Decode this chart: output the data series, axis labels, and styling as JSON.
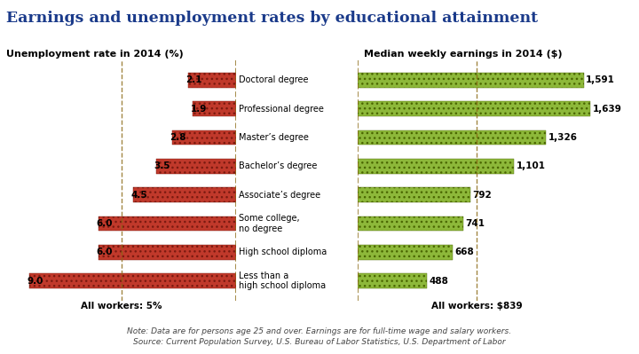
{
  "title": "Earnings and unemployment rates by educational attainment",
  "title_color": "#1a3a8a",
  "left_title": "Unemployment rate in 2014 (%)",
  "right_title": "Median weekly earnings in 2014 ($)",
  "categories": [
    "Doctoral degree",
    "Professional degree",
    "Master’s degree",
    "Bachelor’s degree",
    "Associate’s degree",
    "Some college,\nno degree",
    "High school diploma",
    "Less than a\nhigh school diploma"
  ],
  "unemployment": [
    2.1,
    1.9,
    2.8,
    3.5,
    4.5,
    6.0,
    6.0,
    9.0
  ],
  "earnings": [
    1591,
    1639,
    1326,
    1101,
    792,
    741,
    668,
    488
  ],
  "unemp_bar_color": "#c0392b",
  "earn_bar_color": "#8db83a",
  "unemp_max": 10.0,
  "earn_max": 1800,
  "all_workers_unemp": 5.0,
  "all_workers_earn": 839,
  "note_line1": "Note: Data are for persons age 25 and over. Earnings are for full-time wage and salary workers.",
  "note_line2": "Source: Current Population Survey, U.S. Bureau of Labor Statistics, U.S. Department of Labor",
  "bg_color": "#ffffff",
  "dashed_line_color": "#8b6914",
  "bar_height": 0.52
}
